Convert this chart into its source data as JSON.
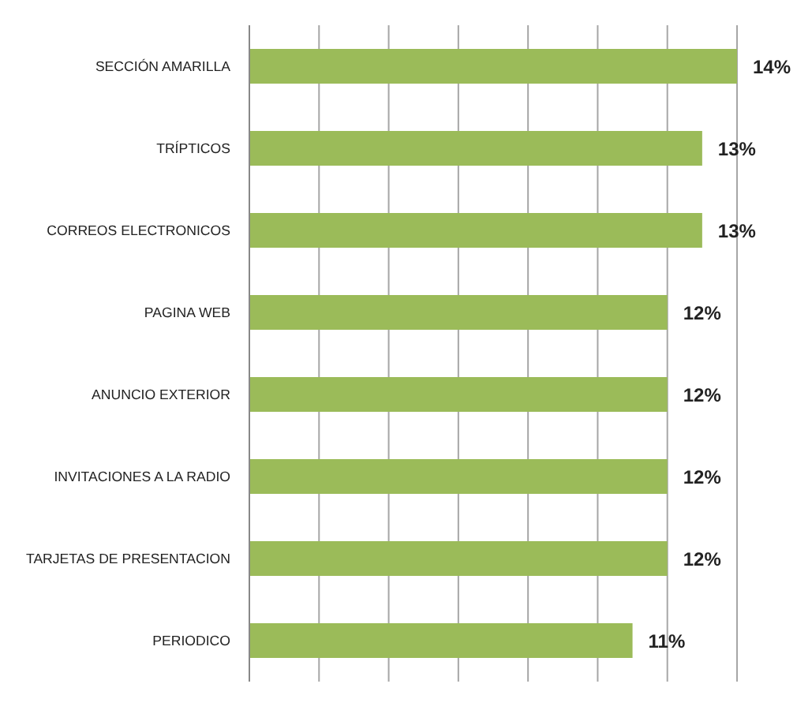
{
  "chart_data": {
    "type": "bar",
    "orientation": "horizontal",
    "categories": [
      "SECCIÓN AMARILLA",
      "TRÍPTICOS",
      "CORREOS ELECTRONICOS",
      "PAGINA WEB",
      "ANUNCIO EXTERIOR",
      "INVITACIONES A LA RADIO",
      "TARJETAS DE PRESENTACION",
      "PERIODICO"
    ],
    "values": [
      14,
      13,
      13,
      12,
      12,
      12,
      12,
      11
    ],
    "value_labels": [
      "14%",
      "13%",
      "13%",
      "12%",
      "12%",
      "12%",
      "12%",
      "11%"
    ],
    "color": "#9bbb59",
    "xlim": [
      0,
      14
    ],
    "xticks": [
      {
        "value": 0,
        "label": null
      },
      {
        "value": 2,
        "label": null
      },
      {
        "value": 4,
        "label": null
      },
      {
        "value": 6,
        "label": null
      },
      {
        "value": 8,
        "label": null
      },
      {
        "value": 10,
        "label": null
      },
      {
        "value": 12,
        "label": null
      },
      {
        "value": 14,
        "label": null
      }
    ],
    "grid": "x",
    "tick_labels": "y"
  }
}
